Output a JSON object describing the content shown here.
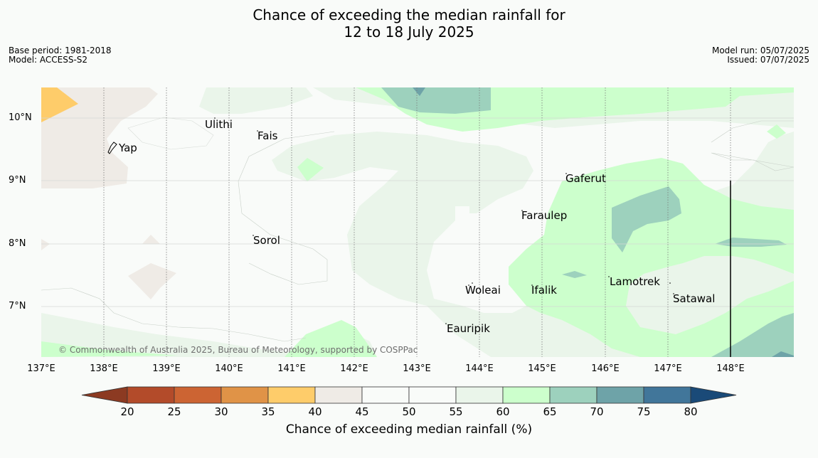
{
  "title_line1": "Chance of exceeding the median rainfall for",
  "title_line2": "12 to 18 July 2025",
  "base_period": "Base period: 1981-2018",
  "model": "Model: ACCESS-S2",
  "model_run": "Model run: 05/07/2025",
  "issued": "Issued: 07/07/2025",
  "latitudes": [
    "10°N",
    "9°N",
    "8°N",
    "7°N"
  ],
  "longitudes": [
    "137°E",
    "138°E",
    "139°E",
    "140°E",
    "141°E",
    "142°E",
    "143°E",
    "144°E",
    "145°E",
    "146°E",
    "147°E",
    "148°E"
  ],
  "places": {
    "ulithi": "Ulithi",
    "fais": "Fais",
    "yap": "Yap",
    "gaferut": "Gaferut",
    "faraulep": "Faraulep",
    "sorol": "Sorol",
    "lamotrek": "Lamotrek",
    "woleai": "Woleai",
    "ifalik": "Ifalik",
    "satawal": "Satawal",
    "eauripik": "Eauripik"
  },
  "credit": "© Commonwealth of Australia 2025, Bureau of Meteorology, supported by COSPPac",
  "colorbar": {
    "label": "Chance of exceeding median rainfall (%)",
    "ticks": [
      "20",
      "25",
      "30",
      "35",
      "40",
      "45",
      "50",
      "55",
      "60",
      "65",
      "70",
      "75",
      "80"
    ],
    "colors": [
      "#8c3a22",
      "#b34b2a",
      "#cc6433",
      "#e09347",
      "#fecc6a",
      "#efebe6",
      "#f9fbf9",
      "#f9fbf9",
      "#eaf5ea",
      "#ccffcc",
      "#9dd1bd",
      "#6ea3a8",
      "#41769a",
      "#1a4a78"
    ]
  }
}
